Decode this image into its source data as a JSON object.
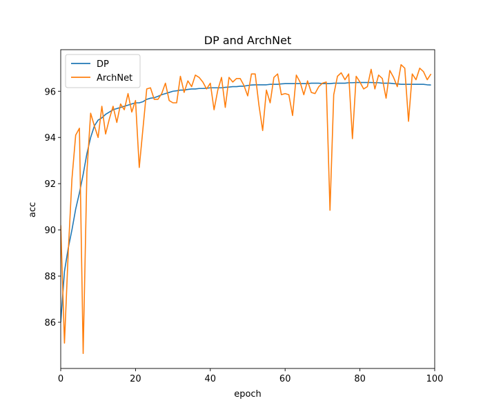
{
  "chart_data": {
    "type": "line",
    "title": "DP and ArchNet",
    "xlabel": "epoch",
    "ylabel": "acc",
    "xlim": [
      0,
      100
    ],
    "ylim": [
      84.0,
      97.8
    ],
    "xticks": [
      0,
      20,
      40,
      60,
      80,
      100
    ],
    "yticks": [
      86,
      88,
      90,
      92,
      94,
      96
    ],
    "legend": "upper-left",
    "grid": false,
    "series": [
      {
        "name": "DP",
        "color": "#1f77b4",
        "x": [
          0,
          1,
          2,
          3,
          4,
          5,
          6,
          7,
          8,
          9,
          10,
          11,
          12,
          13,
          14,
          15,
          16,
          17,
          18,
          19,
          20,
          21,
          22,
          23,
          24,
          25,
          26,
          27,
          28,
          29,
          30,
          31,
          32,
          33,
          34,
          35,
          36,
          37,
          38,
          39,
          40,
          41,
          42,
          43,
          44,
          45,
          46,
          47,
          48,
          49,
          50,
          51,
          52,
          53,
          54,
          55,
          56,
          57,
          58,
          59,
          60,
          61,
          62,
          63,
          64,
          65,
          66,
          67,
          68,
          69,
          70,
          71,
          72,
          73,
          74,
          75,
          76,
          77,
          78,
          79,
          80,
          81,
          82,
          83,
          84,
          85,
          86,
          87,
          88,
          89,
          90,
          91,
          92,
          93,
          94,
          95,
          96,
          97,
          98,
          99
        ],
        "values": [
          86.0,
          88.2,
          89.2,
          90.0,
          90.9,
          91.6,
          92.4,
          93.3,
          94.0,
          94.5,
          94.75,
          94.85,
          95.0,
          95.1,
          95.2,
          95.25,
          95.3,
          95.35,
          95.4,
          95.45,
          95.5,
          95.5,
          95.55,
          95.65,
          95.7,
          95.72,
          95.78,
          95.85,
          95.9,
          95.95,
          96.0,
          96.02,
          96.05,
          96.05,
          96.08,
          96.1,
          96.1,
          96.12,
          96.12,
          96.13,
          96.15,
          96.15,
          96.15,
          96.15,
          96.17,
          96.18,
          96.2,
          96.2,
          96.22,
          96.22,
          96.25,
          96.27,
          96.28,
          96.28,
          96.28,
          96.28,
          96.3,
          96.3,
          96.3,
          96.32,
          96.33,
          96.33,
          96.33,
          96.33,
          96.33,
          96.33,
          96.33,
          96.35,
          96.35,
          96.35,
          96.33,
          96.33,
          96.33,
          96.35,
          96.35,
          96.35,
          96.35,
          96.37,
          96.37,
          96.38,
          96.38,
          96.38,
          96.38,
          96.38,
          96.37,
          96.37,
          96.35,
          96.35,
          96.35,
          96.33,
          96.32,
          96.3,
          96.3,
          96.3,
          96.3,
          96.3,
          96.3,
          96.3,
          96.28,
          96.27
        ]
      },
      {
        "name": "ArchNet",
        "color": "#ff7f0e",
        "x": [
          0,
          1,
          2,
          3,
          4,
          5,
          6,
          7,
          8,
          9,
          10,
          11,
          12,
          13,
          14,
          15,
          16,
          17,
          18,
          19,
          20,
          21,
          22,
          23,
          24,
          25,
          26,
          27,
          28,
          29,
          30,
          31,
          32,
          33,
          34,
          35,
          36,
          37,
          38,
          39,
          40,
          41,
          42,
          43,
          44,
          45,
          46,
          47,
          48,
          49,
          50,
          51,
          52,
          53,
          54,
          55,
          56,
          57,
          58,
          59,
          60,
          61,
          62,
          63,
          64,
          65,
          66,
          67,
          68,
          69,
          70,
          71,
          72,
          73,
          74,
          75,
          76,
          77,
          78,
          79,
          80,
          81,
          82,
          83,
          84,
          85,
          86,
          87,
          88,
          89,
          90,
          91,
          92,
          93,
          94,
          95,
          96,
          97,
          98,
          99
        ],
        "values": [
          90.2,
          85.1,
          89.0,
          92.2,
          94.1,
          94.4,
          84.65,
          92.5,
          95.05,
          94.5,
          94.0,
          95.35,
          94.15,
          94.8,
          95.35,
          94.65,
          95.45,
          95.2,
          95.9,
          95.1,
          95.6,
          92.7,
          94.4,
          96.1,
          96.15,
          95.65,
          95.65,
          95.9,
          96.35,
          95.6,
          95.5,
          95.5,
          96.65,
          95.95,
          96.45,
          96.2,
          96.7,
          96.6,
          96.4,
          96.1,
          96.35,
          95.2,
          96.05,
          96.6,
          95.3,
          96.6,
          96.4,
          96.55,
          96.55,
          96.25,
          95.8,
          96.75,
          96.75,
          95.4,
          94.3,
          96.05,
          95.5,
          96.6,
          96.75,
          95.85,
          95.9,
          95.85,
          94.95,
          96.7,
          96.4,
          95.85,
          96.45,
          95.95,
          95.9,
          96.2,
          96.35,
          96.4,
          90.85,
          95.85,
          96.65,
          96.8,
          96.5,
          96.75,
          93.95,
          96.65,
          96.4,
          96.1,
          96.2,
          96.95,
          96.1,
          96.7,
          96.55,
          95.7,
          96.9,
          96.6,
          96.2,
          97.15,
          97.0,
          94.7,
          96.75,
          96.5,
          97.0,
          96.85,
          96.5,
          96.75
        ]
      }
    ]
  }
}
